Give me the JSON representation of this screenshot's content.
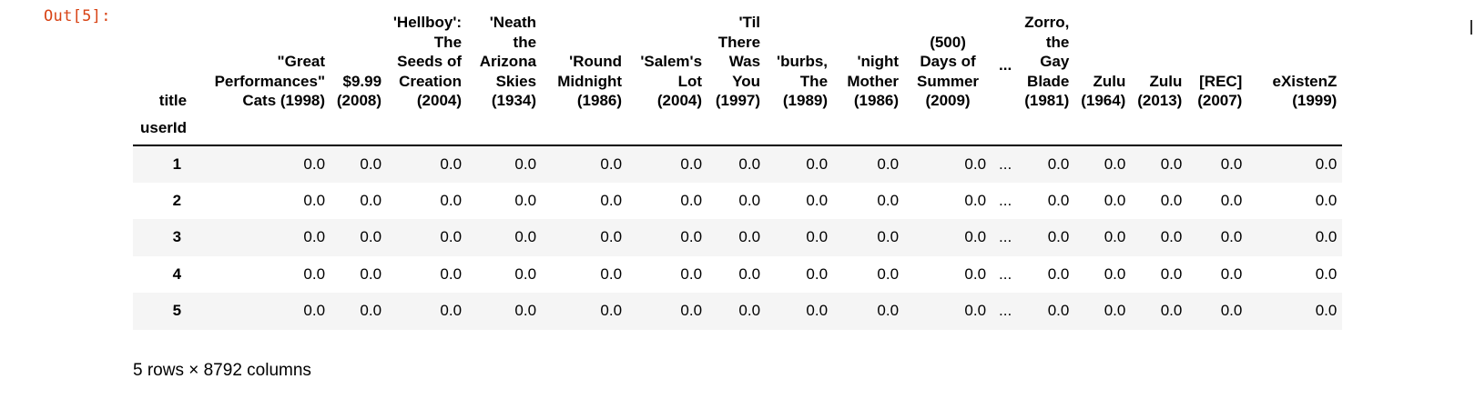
{
  "cell": {
    "prompt": "Out[5]:"
  },
  "dataframe": {
    "columns_header_label": "title",
    "index_name": "userId",
    "columns": [
      "\"Great Performances\" Cats (1998)",
      "$9.99 (2008)",
      "'Hellboy': The Seeds of Creation (2004)",
      "'Neath the Arizona Skies (1934)",
      "'Round Midnight (1986)",
      "'Salem's Lot (2004)",
      "'Til There Was You (1997)",
      "'burbs, The (1989)",
      "'night Mother (1986)",
      "(500) Days of Summer (2009)",
      "...",
      "Zorro, the Gay Blade (1981)",
      "Zulu (1964)",
      "Zulu (2013)",
      "[REC] (2007)",
      "eXistenZ (1999)"
    ],
    "rows": [
      {
        "index": "1",
        "values": [
          "0.0",
          "0.0",
          "0.0",
          "0.0",
          "0.0",
          "0.0",
          "0.0",
          "0.0",
          "0.0",
          "0.0",
          "...",
          "0.0",
          "0.0",
          "0.0",
          "0.0",
          "0.0"
        ]
      },
      {
        "index": "2",
        "values": [
          "0.0",
          "0.0",
          "0.0",
          "0.0",
          "0.0",
          "0.0",
          "0.0",
          "0.0",
          "0.0",
          "0.0",
          "...",
          "0.0",
          "0.0",
          "0.0",
          "0.0",
          "0.0"
        ]
      },
      {
        "index": "3",
        "values": [
          "0.0",
          "0.0",
          "0.0",
          "0.0",
          "0.0",
          "0.0",
          "0.0",
          "0.0",
          "0.0",
          "0.0",
          "...",
          "0.0",
          "0.0",
          "0.0",
          "0.0",
          "0.0"
        ]
      },
      {
        "index": "4",
        "values": [
          "0.0",
          "0.0",
          "0.0",
          "0.0",
          "0.0",
          "0.0",
          "0.0",
          "0.0",
          "0.0",
          "0.0",
          "...",
          "0.0",
          "0.0",
          "0.0",
          "0.0",
          "0.0"
        ]
      },
      {
        "index": "5",
        "values": [
          "0.0",
          "0.0",
          "0.0",
          "0.0",
          "0.0",
          "0.0",
          "0.0",
          "0.0",
          "0.0",
          "0.0",
          "...",
          "0.0",
          "0.0",
          "0.0",
          "0.0",
          "0.0"
        ]
      }
    ],
    "shape_text": "5 rows × 8792 columns"
  }
}
